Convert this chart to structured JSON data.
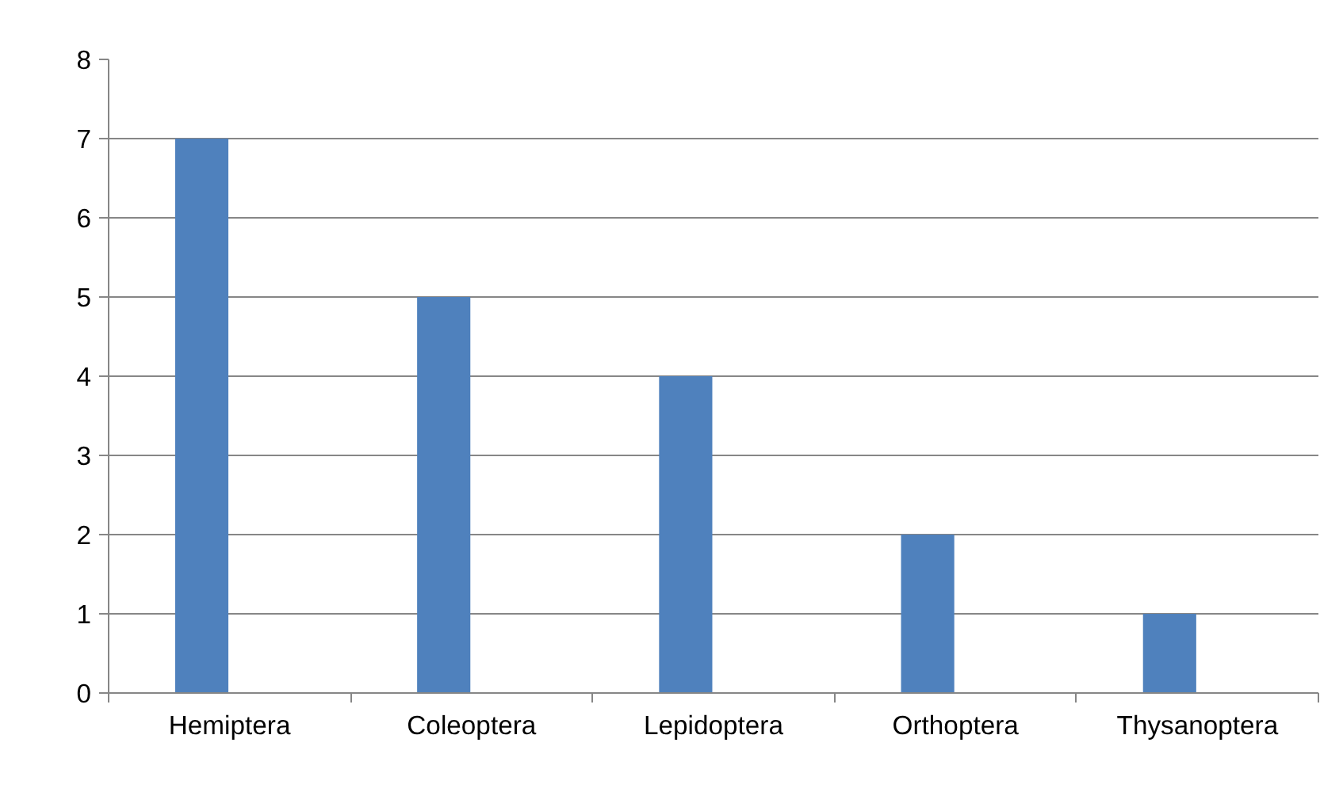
{
  "chart_data": {
    "type": "bar",
    "categories": [
      "Hemiptera",
      "Coleoptera",
      "Lepidoptera",
      "Orthoptera",
      "Thysanoptera"
    ],
    "values": [
      7,
      5,
      4,
      2,
      1
    ],
    "color": "#4f81bd",
    "ylim": [
      0,
      8
    ],
    "yticks": [
      0,
      1,
      2,
      3,
      4,
      5,
      6,
      7,
      8
    ],
    "grid": "y"
  }
}
